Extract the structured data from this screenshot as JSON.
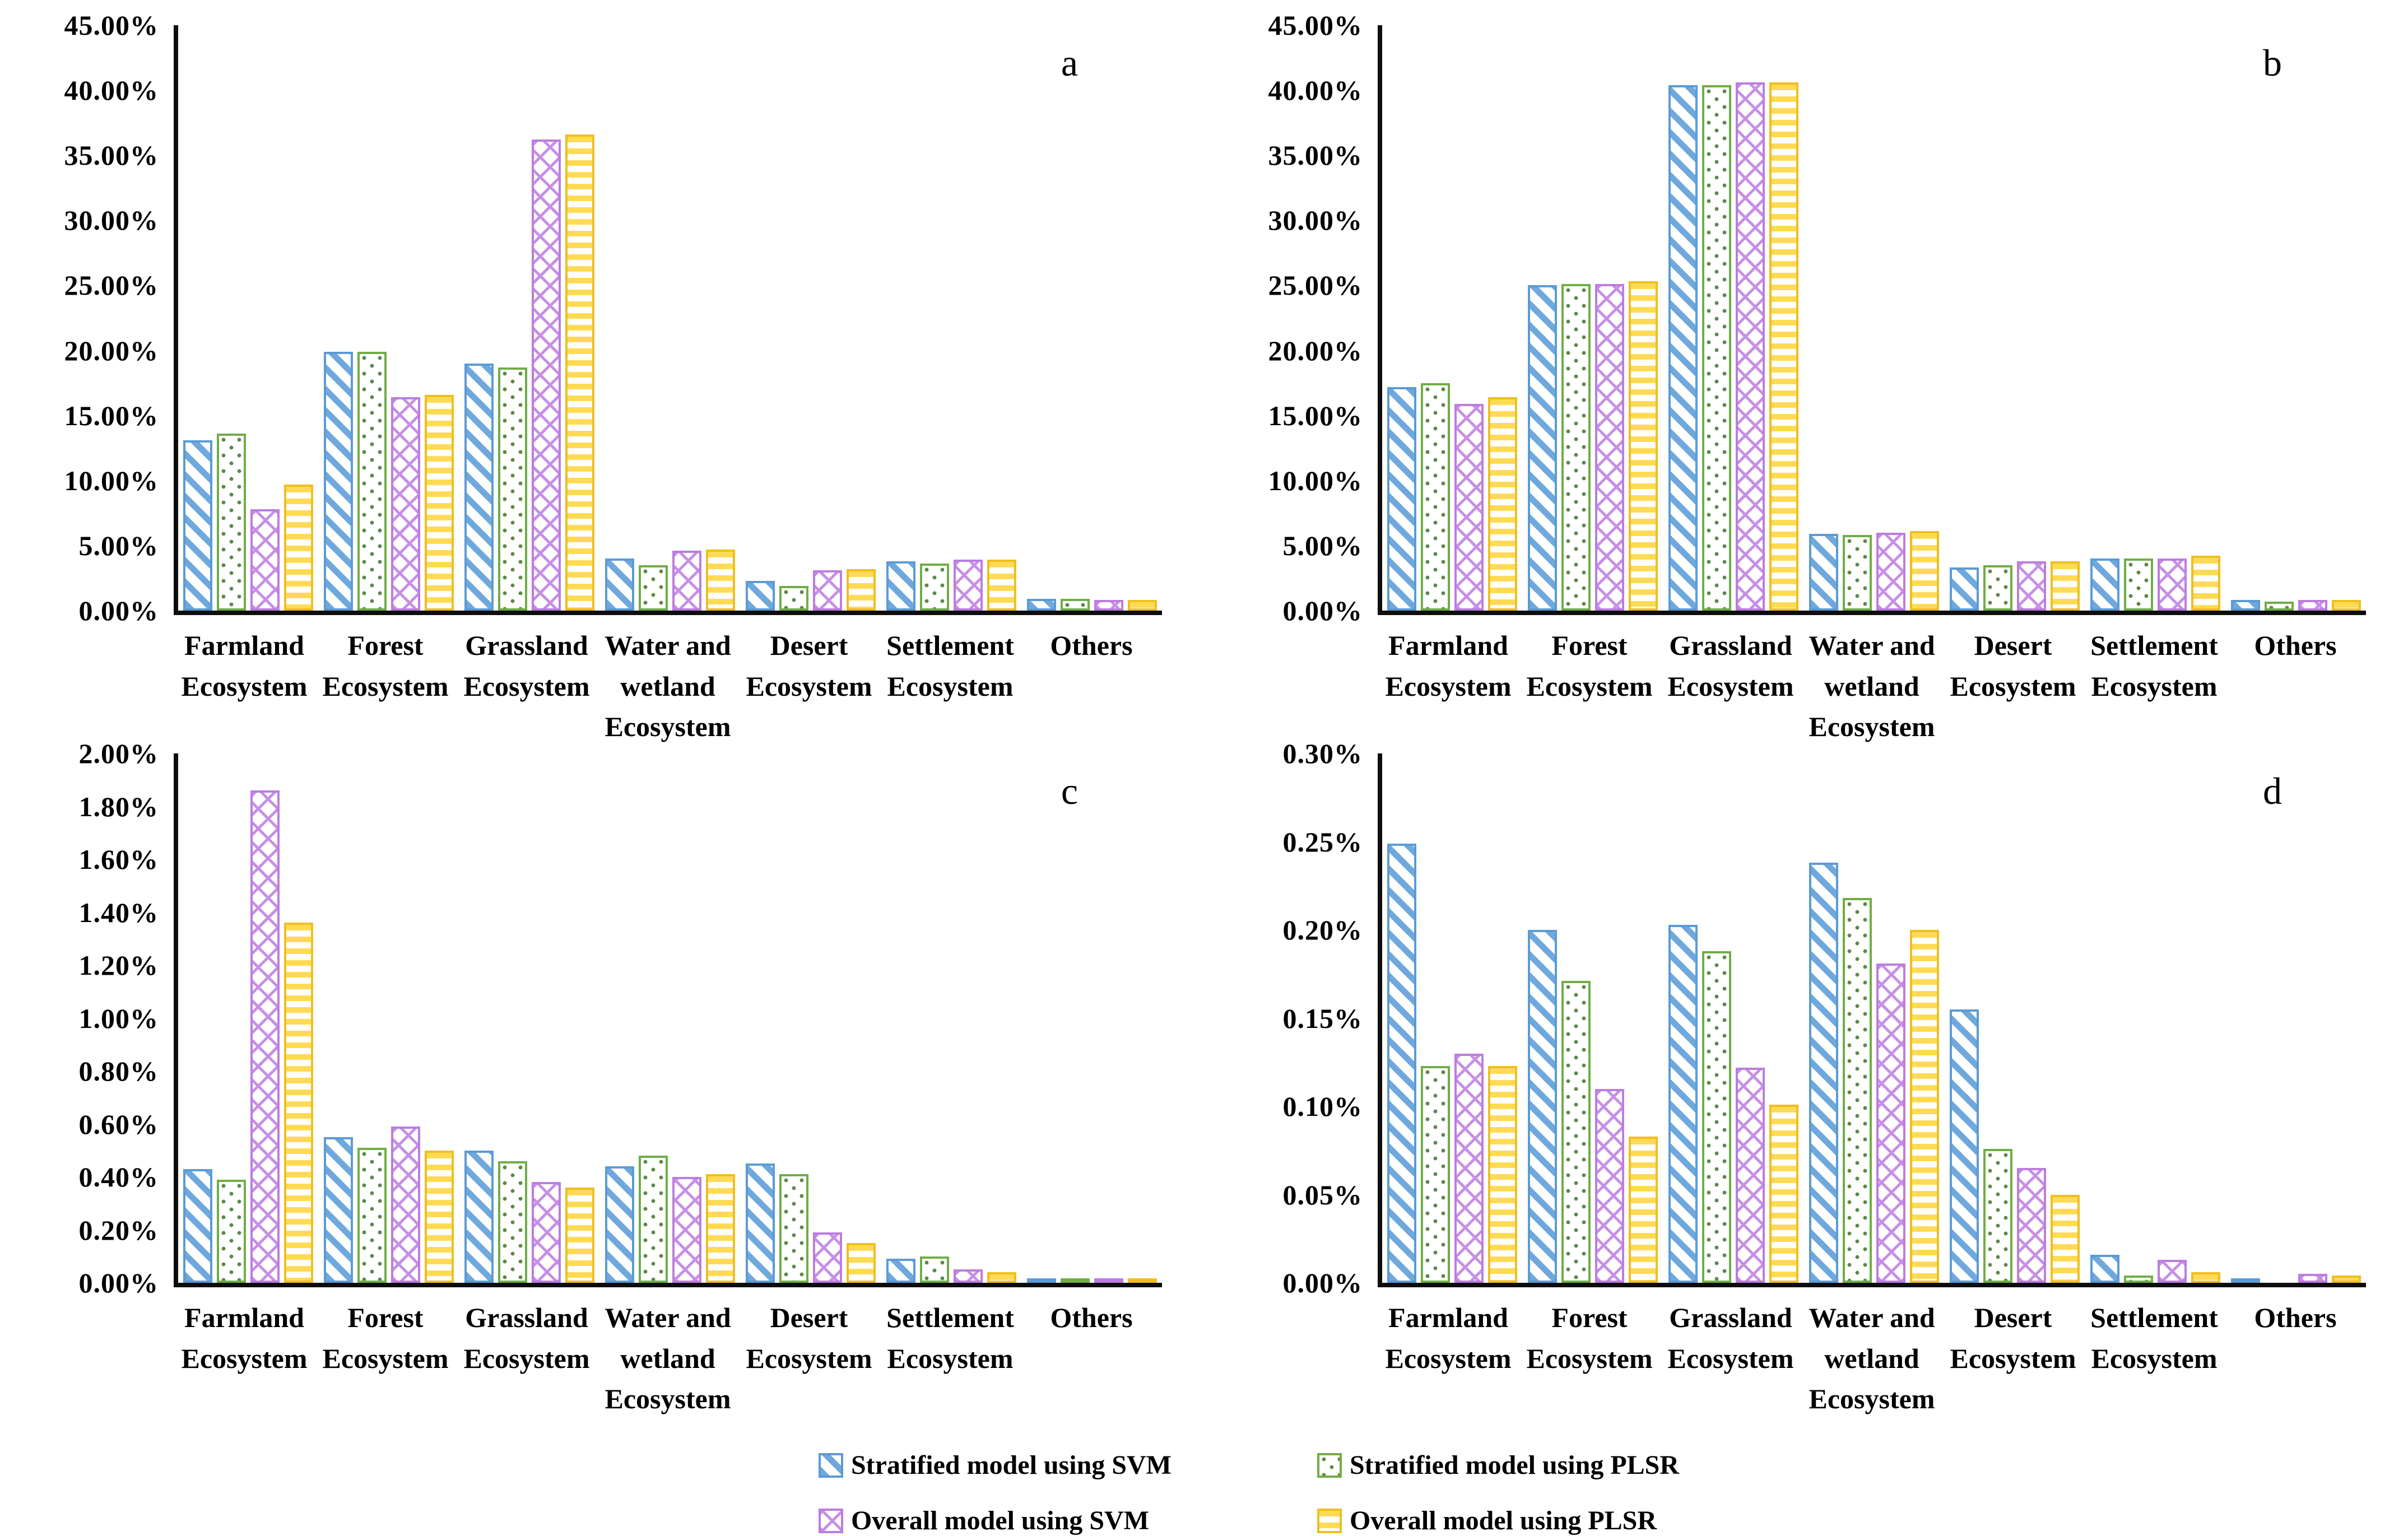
{
  "colors": {
    "series1_blue": "#5B9BD5",
    "series2_green": "#70AD47",
    "series3_purple": "#BC7DDF",
    "series4_yellow": "#EFBF21",
    "axis": "#0d0d0d",
    "background": "#ffffff"
  },
  "legend": {
    "position": "bottom",
    "items": [
      {
        "key": "stratified-svm",
        "label": "Stratified model using SVM",
        "pattern": "blue-diagonal-hatch"
      },
      {
        "key": "stratified-plsr",
        "label": "Stratified model using PLSR",
        "pattern": "green-dotted"
      },
      {
        "key": "overall-svm",
        "label": "Overall model using SVM",
        "pattern": "purple-crosshatch"
      },
      {
        "key": "overall-plsr",
        "label": "Overall model using PLSR",
        "pattern": "yellow-horizontal-lines"
      }
    ]
  },
  "chart_data": [
    {
      "type": "bar",
      "panel_label": "a",
      "title": "",
      "xlabel": "",
      "ylabel": "",
      "grid": false,
      "ylim": [
        0,
        45
      ],
      "ytick_step": 5,
      "ytick_labels": [
        "45.00%",
        "40.00%",
        "35.00%",
        "30.00%",
        "25.00%",
        "20.00%",
        "15.00%",
        "10.00%",
        "5.00%",
        "0.00%"
      ],
      "categories": [
        "Farmland\nEcosystem",
        "Forest\nEcosystem",
        "Grassland\nEcosystem",
        "Water and\nwetland\nEcosystem",
        "Desert\nEcosystem",
        "Settlement\nEcosystem",
        "Others"
      ],
      "series": [
        {
          "name": "Stratified model using SVM",
          "values": [
            13.1,
            19.9,
            19.0,
            4.0,
            2.3,
            3.8,
            0.9
          ]
        },
        {
          "name": "Stratified model using PLSR",
          "values": [
            13.6,
            19.9,
            18.7,
            3.5,
            1.9,
            3.6,
            0.9
          ]
        },
        {
          "name": "Overall model using SVM",
          "values": [
            7.8,
            16.4,
            36.2,
            4.6,
            3.1,
            3.9,
            0.8
          ]
        },
        {
          "name": "Overall model using PLSR",
          "values": [
            9.7,
            16.6,
            36.6,
            4.7,
            3.2,
            3.9,
            0.8
          ]
        }
      ]
    },
    {
      "type": "bar",
      "panel_label": "b",
      "title": "",
      "xlabel": "",
      "ylabel": "",
      "grid": false,
      "ylim": [
        0,
        45
      ],
      "ytick_step": 5,
      "ytick_labels": [
        "45.00%",
        "40.00%",
        "35.00%",
        "30.00%",
        "25.00%",
        "20.00%",
        "15.00%",
        "10.00%",
        "5.00%",
        "0.00%"
      ],
      "categories": [
        "Farmland\nEcosystem",
        "Forest\nEcosystem",
        "Grassland\nEcosystem",
        "Water and\nwetland\nEcosystem",
        "Desert\nEcosystem",
        "Settlement\nEcosystem",
        "Others"
      ],
      "series": [
        {
          "name": "Stratified model using SVM",
          "values": [
            17.2,
            25.0,
            40.4,
            5.9,
            3.3,
            4.0,
            0.8
          ]
        },
        {
          "name": "Stratified model using PLSR",
          "values": [
            17.5,
            25.1,
            40.4,
            5.8,
            3.5,
            4.0,
            0.7
          ]
        },
        {
          "name": "Overall model using SVM",
          "values": [
            15.9,
            25.1,
            40.6,
            6.0,
            3.8,
            4.0,
            0.8
          ]
        },
        {
          "name": "Overall model using PLSR",
          "values": [
            16.4,
            25.3,
            40.6,
            6.1,
            3.8,
            4.2,
            0.8
          ]
        }
      ]
    },
    {
      "type": "bar",
      "panel_label": "c",
      "title": "",
      "xlabel": "",
      "ylabel": "",
      "grid": false,
      "ylim": [
        0,
        2.0
      ],
      "ytick_step": 0.2,
      "ytick_labels": [
        "2.00%",
        "1.80%",
        "1.60%",
        "1.40%",
        "1.20%",
        "1.00%",
        "0.80%",
        "0.60%",
        "0.40%",
        "0.20%",
        "0.00%"
      ],
      "categories": [
        "Farmland\nEcosystem",
        "Forest\nEcosystem",
        "Grassland\nEcosystem",
        "Water and\nwetland\nEcosystem",
        "Desert\nEcosystem",
        "Settlement\nEcosystem",
        "Others"
      ],
      "series": [
        {
          "name": "Stratified model using SVM",
          "values": [
            0.43,
            0.55,
            0.5,
            0.44,
            0.45,
            0.09,
            0.005
          ]
        },
        {
          "name": "Stratified model using PLSR",
          "values": [
            0.39,
            0.51,
            0.46,
            0.48,
            0.41,
            0.1,
            0.005
          ]
        },
        {
          "name": "Overall model using SVM",
          "values": [
            1.86,
            0.59,
            0.38,
            0.4,
            0.19,
            0.05,
            0.01
          ]
        },
        {
          "name": "Overall model using PLSR",
          "values": [
            1.36,
            0.5,
            0.36,
            0.41,
            0.15,
            0.04,
            0.015
          ]
        }
      ]
    },
    {
      "type": "bar",
      "panel_label": "d",
      "title": "",
      "xlabel": "",
      "ylabel": "",
      "grid": false,
      "ylim": [
        0,
        0.3
      ],
      "ytick_step": 0.05,
      "ytick_labels": [
        "0.30%",
        "0.25%",
        "0.20%",
        "0.15%",
        "0.10%",
        "0.05%",
        "0.00%"
      ],
      "categories": [
        "Farmland\nEcosystem",
        "Forest\nEcosystem",
        "Grassland\nEcosystem",
        "Water and\nwetland\nEcosystem",
        "Desert\nEcosystem",
        "Settlement\nEcosystem",
        "Others"
      ],
      "series": [
        {
          "name": "Stratified model using SVM",
          "values": [
            0.249,
            0.2,
            0.203,
            0.238,
            0.155,
            0.016,
            0.001
          ]
        },
        {
          "name": "Stratified model using PLSR",
          "values": [
            0.123,
            0.171,
            0.188,
            0.218,
            0.076,
            0.004,
            0.0
          ]
        },
        {
          "name": "Overall model using SVM",
          "values": [
            0.13,
            0.11,
            0.122,
            0.181,
            0.065,
            0.013,
            0.005
          ]
        },
        {
          "name": "Overall model using PLSR",
          "values": [
            0.123,
            0.083,
            0.101,
            0.2,
            0.05,
            0.006,
            0.004
          ]
        }
      ]
    }
  ]
}
